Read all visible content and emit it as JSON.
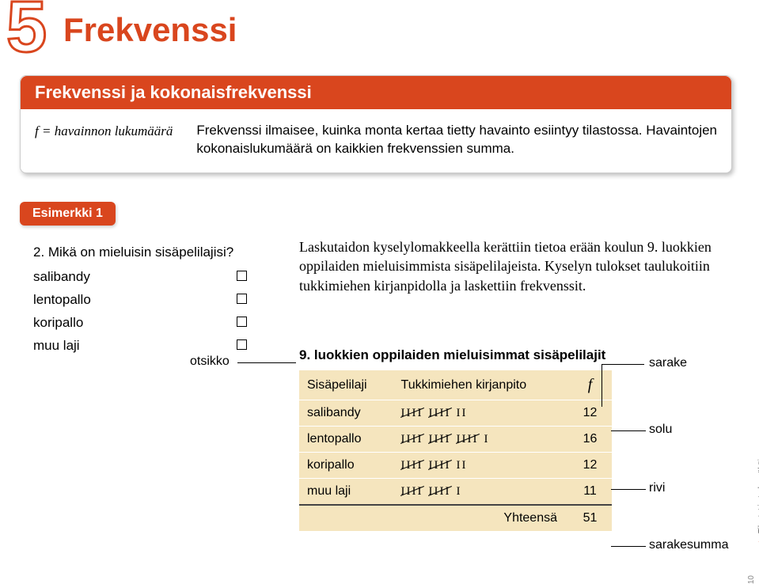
{
  "chapter": {
    "number": "5",
    "title": "Frekvenssi"
  },
  "defbox": {
    "header": "Frekvenssi ja kokonaisfrekvenssi",
    "left": "f = havainnon lukumäärä",
    "right": "Frekvenssi ilmaisee, kuinka monta kertaa tietty havainto esiintyy tilastossa. Havaintojen kokonaislukumäärä on kaikkien frekvenssien summa."
  },
  "example": {
    "label": "Esimerkki 1"
  },
  "survey": {
    "question": "2. Mikä on mieluisin sisäpelilajisi?",
    "options": [
      "salibandy",
      "lentopallo",
      "koripallo",
      "muu laji"
    ]
  },
  "labels": {
    "otsikko": "otsikko",
    "sarake": "sarake",
    "solu": "solu",
    "rivi": "rivi",
    "sarakesumma": "sarakesumma"
  },
  "description": "Laskutaidon kyselylomakkeella kerättiin tietoa erään koulun 9. luokkien oppilaiden mieluisimmista sisäpelilajeista. Kyselyn tulokset taulukoitiin tukkimiehen kirjanpidolla ja laskettiin frekvenssit.",
  "table": {
    "title": "9. luokkien oppilaiden mieluisimmat sisäpelilajit",
    "headers": {
      "col1": "Sisäpelilaji",
      "col2": "Tukkimiehen kirjanpito",
      "col3": "f"
    },
    "rows": [
      {
        "name": "salibandy",
        "tally_groups": 2,
        "tally_extra": 2,
        "f": 12
      },
      {
        "name": "lentopallo",
        "tally_groups": 3,
        "tally_extra": 1,
        "f": 16
      },
      {
        "name": "koripallo",
        "tally_groups": 2,
        "tally_extra": 2,
        "f": 12
      },
      {
        "name": "muu laji",
        "tally_groups": 2,
        "tally_extra": 1,
        "f": 11
      }
    ],
    "total_label": "Yhteensä",
    "total": 51
  },
  "sidebar": {
    "text": "Tilastot ja todennäköisyys",
    "page": "10"
  }
}
